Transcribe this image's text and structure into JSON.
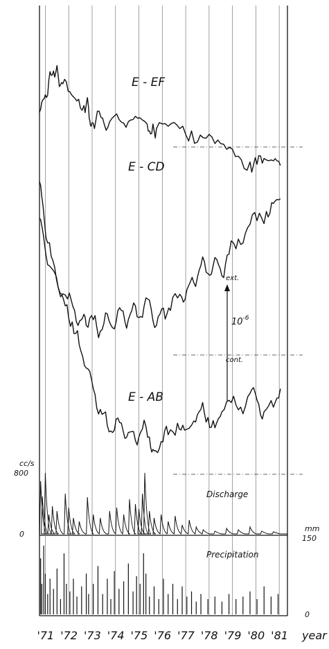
{
  "chart_data": {
    "type": "line",
    "x_tick_labels": [
      "'71",
      "'72",
      "'73",
      "'74",
      "'75",
      "'76",
      "'77",
      "'78",
      "'79",
      "'80",
      "'81"
    ],
    "x_axis_label": "year",
    "xlim": [
      1971.0,
      1981.6
    ],
    "strain_series": [
      {
        "name": "E - EF",
        "points": [
          [
            1971.0,
            0.3
          ],
          [
            1971.2,
            0.42
          ],
          [
            1971.4,
            0.58
          ],
          [
            1971.6,
            0.66
          ],
          [
            1971.8,
            0.62
          ],
          [
            1972.0,
            0.55
          ],
          [
            1972.3,
            0.48
          ],
          [
            1972.6,
            0.4
          ],
          [
            1972.9,
            0.36
          ],
          [
            1973.1,
            0.34
          ],
          [
            1973.2,
            0.18
          ],
          [
            1973.4,
            0.22
          ],
          [
            1973.7,
            0.25
          ],
          [
            1974.0,
            0.22
          ],
          [
            1974.4,
            0.24
          ],
          [
            1974.8,
            0.22
          ],
          [
            1975.2,
            0.25
          ],
          [
            1975.6,
            0.2
          ],
          [
            1975.8,
            0.12
          ],
          [
            1976.0,
            0.16
          ],
          [
            1976.5,
            0.18
          ],
          [
            1977.0,
            0.16
          ],
          [
            1977.5,
            0.14
          ],
          [
            1978.0,
            0.08
          ],
          [
            1978.5,
            0.03
          ],
          [
            1979.0,
            -0.02
          ],
          [
            1979.5,
            -0.08
          ],
          [
            1980.0,
            -0.13
          ],
          [
            1980.3,
            -0.15
          ],
          [
            1980.6,
            -0.1
          ],
          [
            1981.0,
            -0.12
          ],
          [
            1981.3,
            -0.16
          ]
        ]
      },
      {
        "name": "E - CD",
        "points": [
          [
            1971.0,
            -0.62
          ],
          [
            1971.2,
            -0.82
          ],
          [
            1971.5,
            -1.05
          ],
          [
            1971.8,
            -1.22
          ],
          [
            1972.2,
            -1.32
          ],
          [
            1972.5,
            -1.42
          ],
          [
            1972.8,
            -1.5
          ],
          [
            1973.0,
            -1.55
          ],
          [
            1973.3,
            -1.5
          ],
          [
            1973.6,
            -1.6
          ],
          [
            1973.9,
            -1.45
          ],
          [
            1974.2,
            -1.58
          ],
          [
            1974.5,
            -1.42
          ],
          [
            1974.8,
            -1.5
          ],
          [
            1975.1,
            -1.38
          ],
          [
            1975.4,
            -1.48
          ],
          [
            1975.7,
            -1.33
          ],
          [
            1976.0,
            -1.55
          ],
          [
            1976.3,
            -1.4
          ],
          [
            1976.6,
            -1.42
          ],
          [
            1977.0,
            -1.28
          ],
          [
            1977.3,
            -1.24
          ],
          [
            1977.6,
            -1.18
          ],
          [
            1977.9,
            -1.03
          ],
          [
            1978.2,
            -1.1
          ],
          [
            1978.5,
            -0.96
          ],
          [
            1978.8,
            -1.12
          ],
          [
            1979.1,
            -0.93
          ],
          [
            1979.5,
            -0.8
          ],
          [
            1979.9,
            -0.7
          ],
          [
            1980.3,
            -0.64
          ],
          [
            1980.7,
            -0.56
          ],
          [
            1981.0,
            -0.49
          ],
          [
            1981.3,
            -0.45
          ]
        ]
      },
      {
        "name": "E - AB",
        "points": [
          [
            1971.0,
            -0.3
          ],
          [
            1971.2,
            -0.62
          ],
          [
            1971.5,
            -0.95
          ],
          [
            1971.8,
            -1.22
          ],
          [
            1972.1,
            -1.38
          ],
          [
            1972.4,
            -1.52
          ],
          [
            1972.7,
            -1.72
          ],
          [
            1973.0,
            -1.92
          ],
          [
            1973.3,
            -2.1
          ],
          [
            1973.6,
            -2.28
          ],
          [
            1973.9,
            -2.42
          ],
          [
            1974.2,
            -2.46
          ],
          [
            1974.5,
            -2.4
          ],
          [
            1974.8,
            -2.48
          ],
          [
            1975.1,
            -2.55
          ],
          [
            1975.4,
            -2.45
          ],
          [
            1975.7,
            -2.52
          ],
          [
            1975.9,
            -2.64
          ],
          [
            1976.2,
            -2.56
          ],
          [
            1976.5,
            -2.5
          ],
          [
            1976.9,
            -2.4
          ],
          [
            1977.2,
            -2.46
          ],
          [
            1977.6,
            -2.38
          ],
          [
            1977.9,
            -2.28
          ],
          [
            1978.2,
            -2.35
          ],
          [
            1978.5,
            -2.44
          ],
          [
            1978.8,
            -2.3
          ],
          [
            1979.2,
            -2.22
          ],
          [
            1979.6,
            -2.26
          ],
          [
            1980.0,
            -2.14
          ],
          [
            1980.3,
            -2.2
          ],
          [
            1980.6,
            -2.3
          ],
          [
            1981.0,
            -2.26
          ],
          [
            1981.3,
            -2.1
          ]
        ]
      }
    ],
    "scale_bar": {
      "top_label": "ext.",
      "bottom_label": "cont.",
      "value_label": "10^-6",
      "value": 1e-06
    },
    "discharge": {
      "label": "Discharge",
      "unit_label": "cc/s",
      "tick_labels": [
        "800",
        "0"
      ],
      "ylim": [
        0,
        900
      ],
      "peaks": [
        [
          1971.05,
          780
        ],
        [
          1971.12,
          560
        ],
        [
          1971.25,
          900
        ],
        [
          1971.4,
          300
        ],
        [
          1971.55,
          420
        ],
        [
          1971.75,
          350
        ],
        [
          1972.1,
          600
        ],
        [
          1972.25,
          400
        ],
        [
          1972.45,
          250
        ],
        [
          1972.7,
          200
        ],
        [
          1973.05,
          550
        ],
        [
          1973.3,
          300
        ],
        [
          1973.6,
          250
        ],
        [
          1974.0,
          350
        ],
        [
          1974.3,
          400
        ],
        [
          1974.6,
          300
        ],
        [
          1974.85,
          520
        ],
        [
          1975.1,
          450
        ],
        [
          1975.25,
          380
        ],
        [
          1975.4,
          600
        ],
        [
          1975.5,
          900
        ],
        [
          1975.7,
          350
        ],
        [
          1975.9,
          250
        ],
        [
          1976.2,
          300
        ],
        [
          1976.5,
          200
        ],
        [
          1976.8,
          280
        ],
        [
          1977.1,
          150
        ],
        [
          1977.4,
          220
        ],
        [
          1977.7,
          120
        ],
        [
          1978.0,
          80
        ],
        [
          1978.5,
          60
        ],
        [
          1979.0,
          100
        ],
        [
          1979.5,
          80
        ],
        [
          1980.0,
          120
        ],
        [
          1980.5,
          60
        ],
        [
          1981.0,
          50
        ]
      ]
    },
    "precipitation": {
      "label": "Precipitation",
      "unit_label": "mm",
      "tick_labels": [
        "150",
        "0"
      ],
      "ylim": [
        0,
        150
      ],
      "bars": [
        [
          1971.05,
          110
        ],
        [
          1971.1,
          60
        ],
        [
          1971.18,
          135
        ],
        [
          1971.25,
          80
        ],
        [
          1971.35,
          40
        ],
        [
          1971.45,
          70
        ],
        [
          1971.6,
          50
        ],
        [
          1971.75,
          90
        ],
        [
          1971.9,
          30
        ],
        [
          1972.05,
          120
        ],
        [
          1972.15,
          60
        ],
        [
          1972.3,
          45
        ],
        [
          1972.45,
          70
        ],
        [
          1972.6,
          35
        ],
        [
          1972.8,
          55
        ],
        [
          1973.0,
          80
        ],
        [
          1973.1,
          40
        ],
        [
          1973.3,
          60
        ],
        [
          1973.5,
          95
        ],
        [
          1973.7,
          40
        ],
        [
          1973.9,
          70
        ],
        [
          1974.05,
          30
        ],
        [
          1974.2,
          85
        ],
        [
          1974.4,
          50
        ],
        [
          1974.6,
          65
        ],
        [
          1974.8,
          100
        ],
        [
          1975.0,
          45
        ],
        [
          1975.15,
          75
        ],
        [
          1975.3,
          60
        ],
        [
          1975.45,
          120
        ],
        [
          1975.55,
          80
        ],
        [
          1975.7,
          35
        ],
        [
          1975.9,
          55
        ],
        [
          1976.1,
          30
        ],
        [
          1976.3,
          70
        ],
        [
          1976.5,
          40
        ],
        [
          1976.7,
          60
        ],
        [
          1976.9,
          30
        ],
        [
          1977.1,
          55
        ],
        [
          1977.3,
          35
        ],
        [
          1977.5,
          45
        ],
        [
          1977.7,
          25
        ],
        [
          1977.9,
          40
        ],
        [
          1978.2,
          30
        ],
        [
          1978.5,
          35
        ],
        [
          1978.8,
          25
        ],
        [
          1979.1,
          40
        ],
        [
          1979.4,
          30
        ],
        [
          1979.7,
          35
        ],
        [
          1980.0,
          45
        ],
        [
          1980.3,
          30
        ],
        [
          1980.6,
          55
        ],
        [
          1980.9,
          35
        ],
        [
          1981.2,
          40
        ]
      ]
    }
  }
}
